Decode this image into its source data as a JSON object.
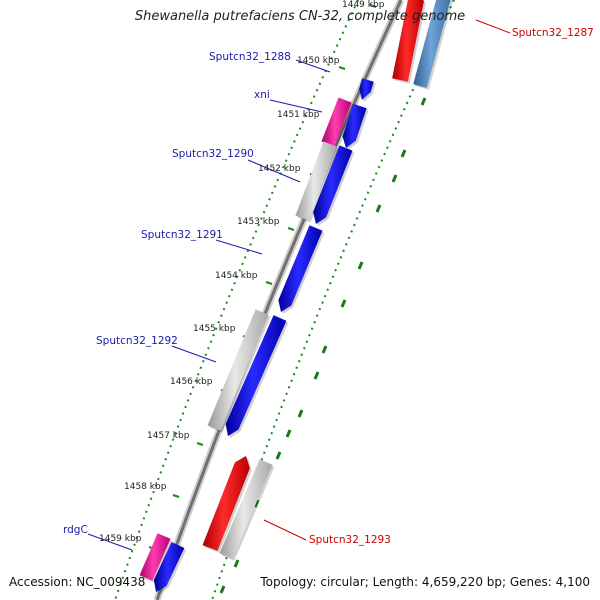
{
  "map": {
    "title": "Shewanella putrefaciens CN-32, complete genome",
    "accession_text": "Accession: NC_009438",
    "summary_text": "Topology: circular; Length: 4,659,220 bp; Genes: 4,100",
    "colors": {
      "forward_cds": "#0000ee",
      "reverse_cds": "#ee0000",
      "forward_label": "#1a1aaa",
      "reverse_label": "#cc0000",
      "rna_gene": "#e0008c",
      "other_feature": "#bdbdbd",
      "hit_bar": "#4a82b8",
      "backbone": "#808080",
      "gc_ticks": "#1a8a1a"
    },
    "ticks": [
      "1449 kbp",
      "1450 kbp",
      "1451 kbp",
      "1452 kbp",
      "1453 kbp",
      "1454 kbp",
      "1455 kbp",
      "1456 kbp",
      "1457 kbp",
      "1458 kbp",
      "1459 kbp"
    ],
    "gene_labels": [
      "Sputcn32_1287",
      "Sputcn32_1288",
      "xni",
      "Sputcn32_1290",
      "Sputcn32_1291",
      "Sputcn32_1292",
      "Sputcn32_1293",
      "rdgC"
    ]
  }
}
